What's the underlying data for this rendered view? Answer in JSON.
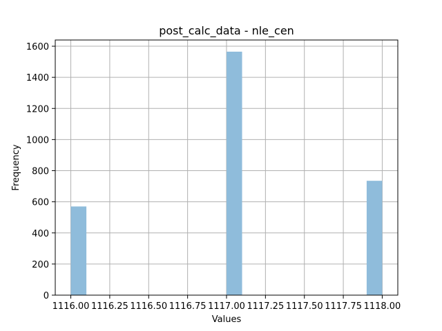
{
  "chart_data": {
    "type": "bar",
    "title": "post_calc_data - nle_cen",
    "xlabel": "Values",
    "ylabel": "Frequency",
    "xlim": [
      1115.9,
      1118.1
    ],
    "ylim": [
      0,
      1640
    ],
    "x_ticks": [
      1116.0,
      1116.25,
      1116.5,
      1116.75,
      1117.0,
      1117.25,
      1117.5,
      1117.75,
      1118.0
    ],
    "x_tick_labels": [
      "1116.00",
      "1116.25",
      "1116.50",
      "1116.75",
      "1117.00",
      "1117.25",
      "1117.50",
      "1117.75",
      "1118.00"
    ],
    "y_ticks": [
      0,
      200,
      400,
      600,
      800,
      1000,
      1200,
      1400,
      1600
    ],
    "y_tick_labels": [
      "0",
      "200",
      "400",
      "600",
      "800",
      "1000",
      "1200",
      "1400",
      "1600"
    ],
    "bin_width": 0.1,
    "bars": [
      {
        "x0": 1116.0,
        "x1": 1116.1,
        "value": 570
      },
      {
        "x0": 1117.0,
        "x1": 1117.1,
        "value": 1565
      },
      {
        "x0": 1117.9,
        "x1": 1118.0,
        "value": 735
      }
    ],
    "grid": true,
    "bar_color": "#8fbcdb"
  }
}
